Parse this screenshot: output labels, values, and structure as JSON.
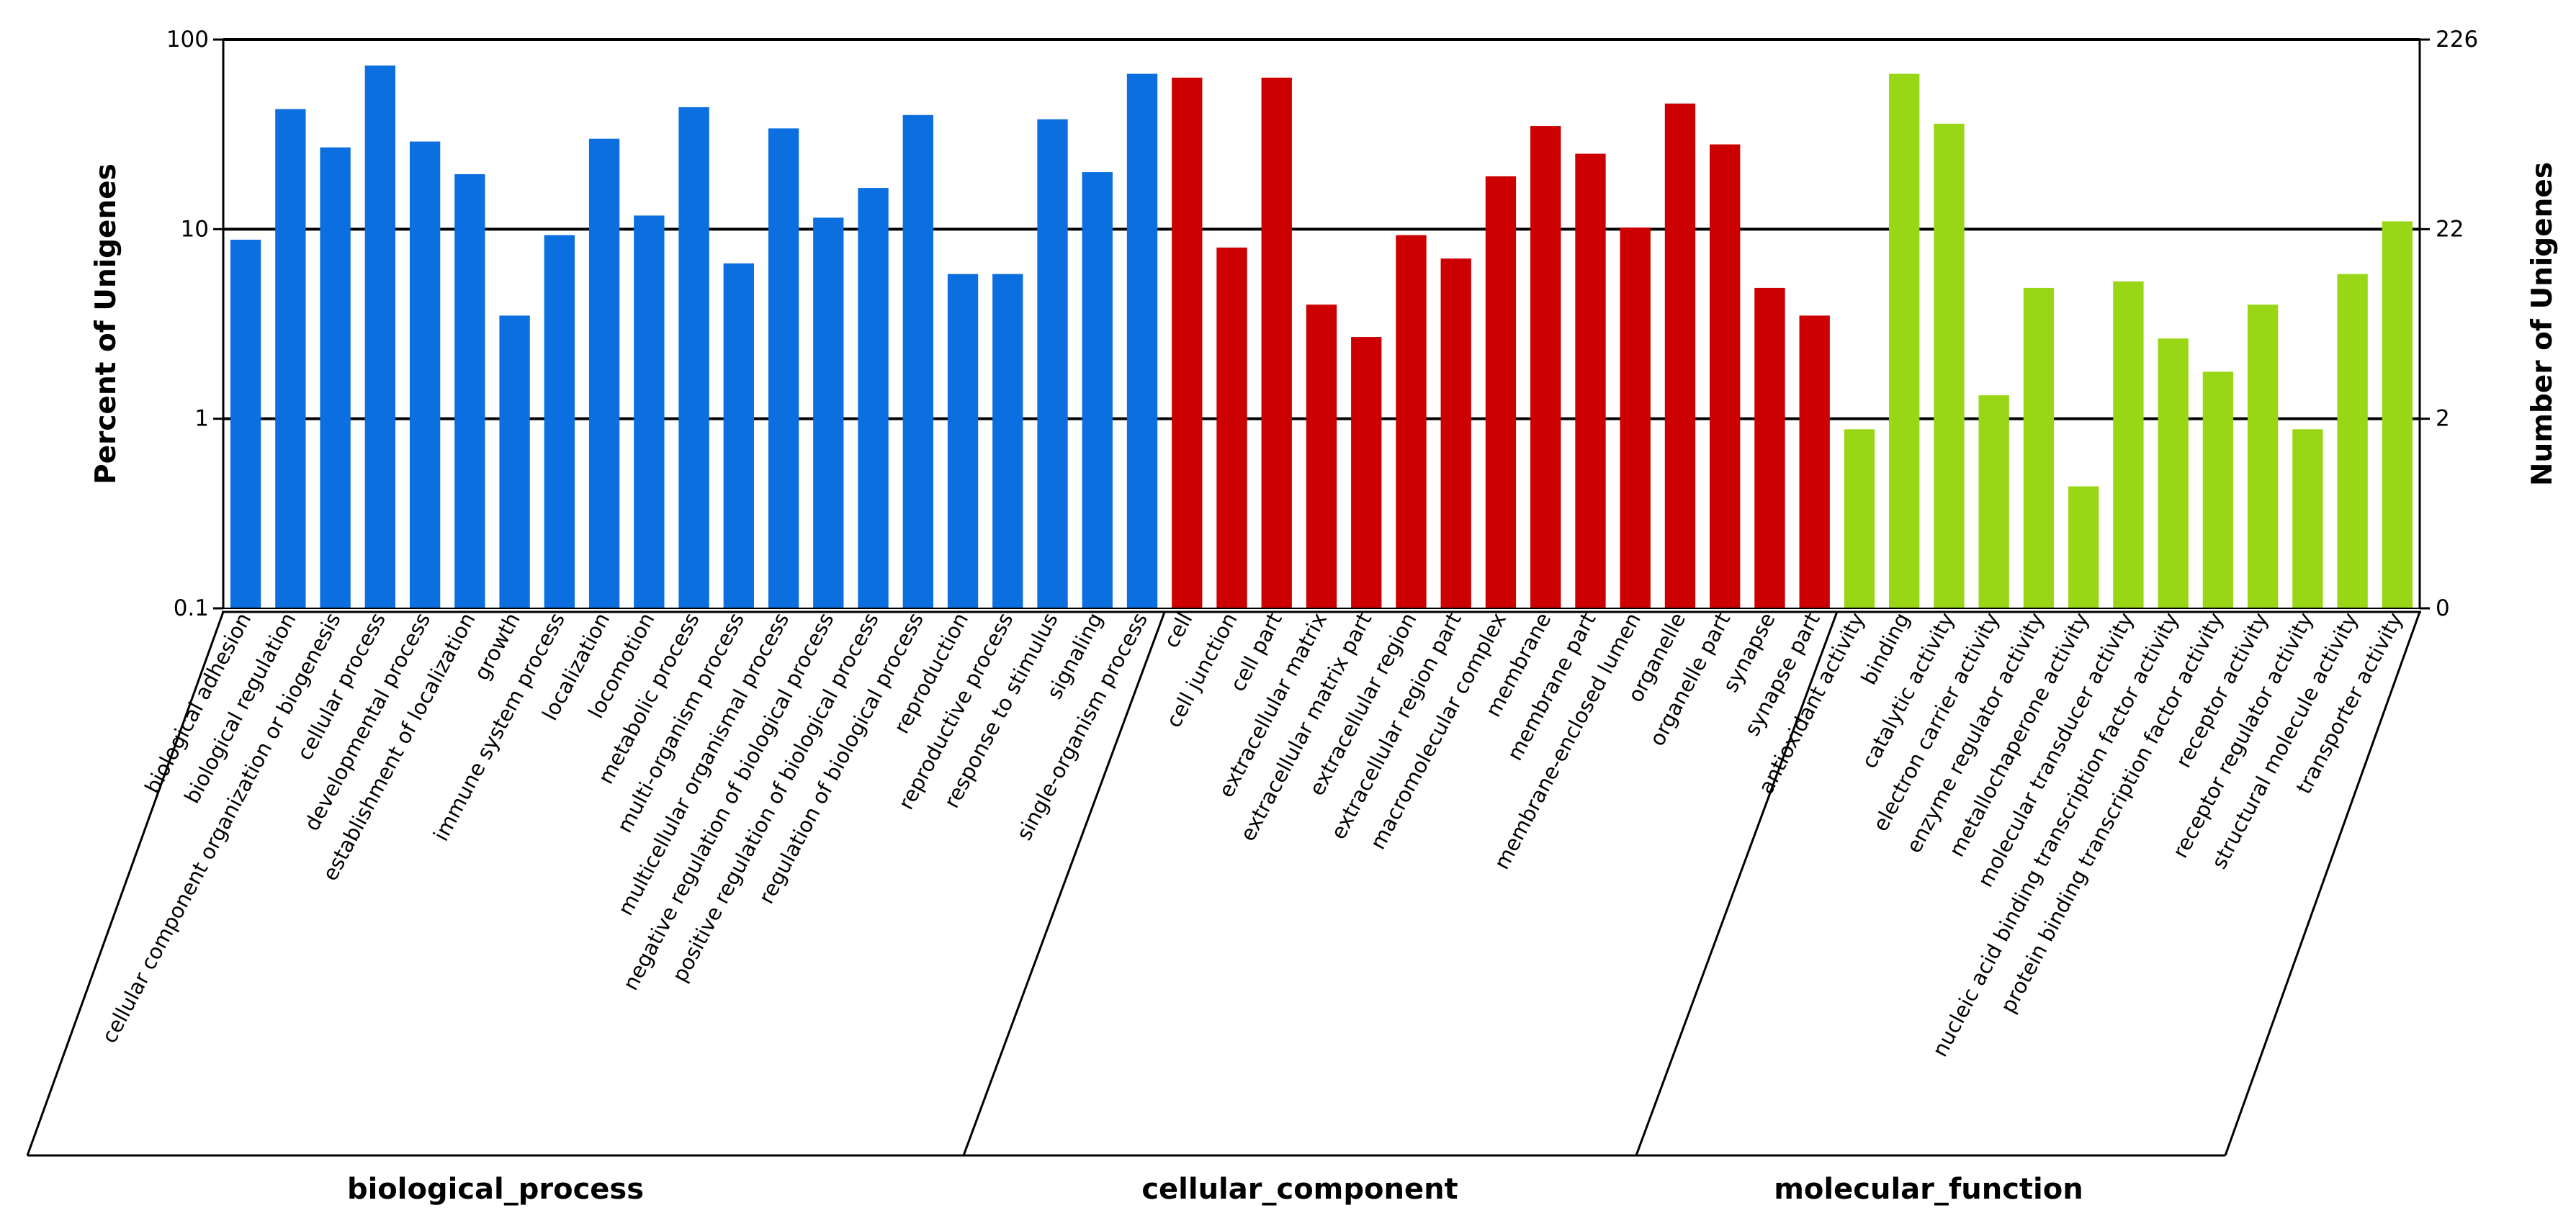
{
  "chart_data": {
    "type": "bar",
    "scale": "log",
    "ylabel_left": "Percent of Unigenes",
    "ylabel_right": "Number of Unigenes",
    "ylim": [
      0.1,
      100
    ],
    "left_ticks": [
      {
        "value": 0.1,
        "label": "0.1"
      },
      {
        "value": 1,
        "label": "1"
      },
      {
        "value": 10,
        "label": "10"
      },
      {
        "value": 100,
        "label": "100"
      }
    ],
    "right_ticks": [
      {
        "value": 0.1,
        "label": "0"
      },
      {
        "value": 1,
        "label": "2"
      },
      {
        "value": 10,
        "label": "22"
      },
      {
        "value": 100,
        "label": "226"
      }
    ],
    "groups": [
      {
        "name": "biological_process",
        "color": "#0b6fe0",
        "categories": [
          "biological adhesion",
          "biological regulation",
          "cellular component organization or biogenesis",
          "cellular process",
          "developmental process",
          "establishment of localization",
          "growth",
          "immune system process",
          "localization",
          "locomotion",
          "metabolic process",
          "multi-organism process",
          "multicellular organismal process",
          "negative regulation of biological process",
          "positive regulation of biological process",
          "regulation of biological process",
          "reproduction",
          "reproductive process",
          "response to stimulus",
          "signaling",
          "single-organism process"
        ],
        "values": [
          8.8,
          43,
          27,
          73,
          29,
          19.5,
          3.5,
          9.3,
          30,
          11.8,
          44,
          6.6,
          34,
          11.5,
          16.5,
          40,
          5.8,
          5.8,
          38,
          20,
          66
        ]
      },
      {
        "name": "cellular_component",
        "color": "#cc0000",
        "categories": [
          "cell",
          "cell junction",
          "cell part",
          "extracellular matrix",
          "extracellular matrix part",
          "extracellular region",
          "extracellular region part",
          "macromolecular complex",
          "membrane",
          "membrane part",
          "membrane-enclosed lumen",
          "organelle",
          "organelle part",
          "synapse",
          "synapse part"
        ],
        "values": [
          63,
          8,
          63,
          4,
          2.7,
          9.3,
          7,
          19,
          35,
          25,
          10.2,
          46,
          28,
          4.9,
          3.5
        ]
      },
      {
        "name": "molecular_function",
        "color": "#99d616",
        "categories": [
          "antioxidant activity",
          "binding",
          "catalytic activity",
          "electron carrier activity",
          "enzyme regulator activity",
          "metallochaperone activity",
          "molecular transducer activity",
          "nucleic acid binding transcription factor activity",
          "protein binding transcription factor activity",
          "receptor activity",
          "receptor regulator activity",
          "structural molecule activity",
          "transporter activity"
        ],
        "values": [
          0.88,
          66,
          36,
          1.33,
          4.9,
          0.44,
          5.3,
          2.65,
          1.77,
          4,
          0.88,
          5.8,
          11
        ]
      }
    ]
  }
}
